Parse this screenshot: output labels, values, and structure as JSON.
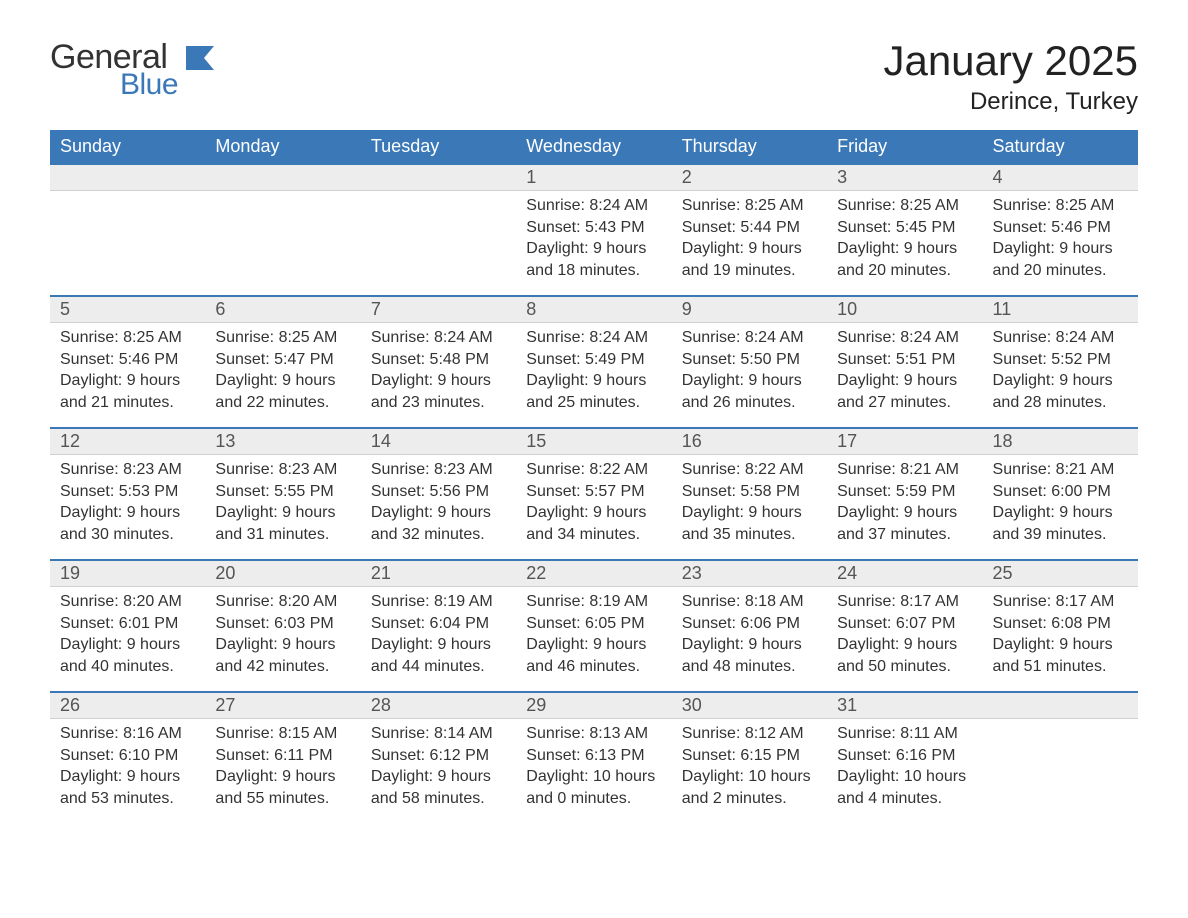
{
  "brand": {
    "word1": "General",
    "word2": "Blue",
    "flag_color": "#3a78b8",
    "word1_color": "#333333",
    "word2_color": "#3a78b8"
  },
  "header": {
    "month_title": "January 2025",
    "location": "Derince, Turkey"
  },
  "style": {
    "header_bg": "#3a78b8",
    "header_text": "#ffffff",
    "daynum_bg": "#ededed",
    "row_divider": "#3a78b8",
    "body_bg": "#ffffff",
    "text_color": "#333333",
    "title_fontsize_pt": 32,
    "location_fontsize_pt": 18,
    "dayhdr_fontsize_pt": 14,
    "cell_fontsize_pt": 12
  },
  "day_headers": [
    "Sunday",
    "Monday",
    "Tuesday",
    "Wednesday",
    "Thursday",
    "Friday",
    "Saturday"
  ],
  "weeks": [
    [
      null,
      null,
      null,
      {
        "n": "1",
        "sunrise": "Sunrise: 8:24 AM",
        "sunset": "Sunset: 5:43 PM",
        "d1": "Daylight: 9 hours",
        "d2": "and 18 minutes."
      },
      {
        "n": "2",
        "sunrise": "Sunrise: 8:25 AM",
        "sunset": "Sunset: 5:44 PM",
        "d1": "Daylight: 9 hours",
        "d2": "and 19 minutes."
      },
      {
        "n": "3",
        "sunrise": "Sunrise: 8:25 AM",
        "sunset": "Sunset: 5:45 PM",
        "d1": "Daylight: 9 hours",
        "d2": "and 20 minutes."
      },
      {
        "n": "4",
        "sunrise": "Sunrise: 8:25 AM",
        "sunset": "Sunset: 5:46 PM",
        "d1": "Daylight: 9 hours",
        "d2": "and 20 minutes."
      }
    ],
    [
      {
        "n": "5",
        "sunrise": "Sunrise: 8:25 AM",
        "sunset": "Sunset: 5:46 PM",
        "d1": "Daylight: 9 hours",
        "d2": "and 21 minutes."
      },
      {
        "n": "6",
        "sunrise": "Sunrise: 8:25 AM",
        "sunset": "Sunset: 5:47 PM",
        "d1": "Daylight: 9 hours",
        "d2": "and 22 minutes."
      },
      {
        "n": "7",
        "sunrise": "Sunrise: 8:24 AM",
        "sunset": "Sunset: 5:48 PM",
        "d1": "Daylight: 9 hours",
        "d2": "and 23 minutes."
      },
      {
        "n": "8",
        "sunrise": "Sunrise: 8:24 AM",
        "sunset": "Sunset: 5:49 PM",
        "d1": "Daylight: 9 hours",
        "d2": "and 25 minutes."
      },
      {
        "n": "9",
        "sunrise": "Sunrise: 8:24 AM",
        "sunset": "Sunset: 5:50 PM",
        "d1": "Daylight: 9 hours",
        "d2": "and 26 minutes."
      },
      {
        "n": "10",
        "sunrise": "Sunrise: 8:24 AM",
        "sunset": "Sunset: 5:51 PM",
        "d1": "Daylight: 9 hours",
        "d2": "and 27 minutes."
      },
      {
        "n": "11",
        "sunrise": "Sunrise: 8:24 AM",
        "sunset": "Sunset: 5:52 PM",
        "d1": "Daylight: 9 hours",
        "d2": "and 28 minutes."
      }
    ],
    [
      {
        "n": "12",
        "sunrise": "Sunrise: 8:23 AM",
        "sunset": "Sunset: 5:53 PM",
        "d1": "Daylight: 9 hours",
        "d2": "and 30 minutes."
      },
      {
        "n": "13",
        "sunrise": "Sunrise: 8:23 AM",
        "sunset": "Sunset: 5:55 PM",
        "d1": "Daylight: 9 hours",
        "d2": "and 31 minutes."
      },
      {
        "n": "14",
        "sunrise": "Sunrise: 8:23 AM",
        "sunset": "Sunset: 5:56 PM",
        "d1": "Daylight: 9 hours",
        "d2": "and 32 minutes."
      },
      {
        "n": "15",
        "sunrise": "Sunrise: 8:22 AM",
        "sunset": "Sunset: 5:57 PM",
        "d1": "Daylight: 9 hours",
        "d2": "and 34 minutes."
      },
      {
        "n": "16",
        "sunrise": "Sunrise: 8:22 AM",
        "sunset": "Sunset: 5:58 PM",
        "d1": "Daylight: 9 hours",
        "d2": "and 35 minutes."
      },
      {
        "n": "17",
        "sunrise": "Sunrise: 8:21 AM",
        "sunset": "Sunset: 5:59 PM",
        "d1": "Daylight: 9 hours",
        "d2": "and 37 minutes."
      },
      {
        "n": "18",
        "sunrise": "Sunrise: 8:21 AM",
        "sunset": "Sunset: 6:00 PM",
        "d1": "Daylight: 9 hours",
        "d2": "and 39 minutes."
      }
    ],
    [
      {
        "n": "19",
        "sunrise": "Sunrise: 8:20 AM",
        "sunset": "Sunset: 6:01 PM",
        "d1": "Daylight: 9 hours",
        "d2": "and 40 minutes."
      },
      {
        "n": "20",
        "sunrise": "Sunrise: 8:20 AM",
        "sunset": "Sunset: 6:03 PM",
        "d1": "Daylight: 9 hours",
        "d2": "and 42 minutes."
      },
      {
        "n": "21",
        "sunrise": "Sunrise: 8:19 AM",
        "sunset": "Sunset: 6:04 PM",
        "d1": "Daylight: 9 hours",
        "d2": "and 44 minutes."
      },
      {
        "n": "22",
        "sunrise": "Sunrise: 8:19 AM",
        "sunset": "Sunset: 6:05 PM",
        "d1": "Daylight: 9 hours",
        "d2": "and 46 minutes."
      },
      {
        "n": "23",
        "sunrise": "Sunrise: 8:18 AM",
        "sunset": "Sunset: 6:06 PM",
        "d1": "Daylight: 9 hours",
        "d2": "and 48 minutes."
      },
      {
        "n": "24",
        "sunrise": "Sunrise: 8:17 AM",
        "sunset": "Sunset: 6:07 PM",
        "d1": "Daylight: 9 hours",
        "d2": "and 50 minutes."
      },
      {
        "n": "25",
        "sunrise": "Sunrise: 8:17 AM",
        "sunset": "Sunset: 6:08 PM",
        "d1": "Daylight: 9 hours",
        "d2": "and 51 minutes."
      }
    ],
    [
      {
        "n": "26",
        "sunrise": "Sunrise: 8:16 AM",
        "sunset": "Sunset: 6:10 PM",
        "d1": "Daylight: 9 hours",
        "d2": "and 53 minutes."
      },
      {
        "n": "27",
        "sunrise": "Sunrise: 8:15 AM",
        "sunset": "Sunset: 6:11 PM",
        "d1": "Daylight: 9 hours",
        "d2": "and 55 minutes."
      },
      {
        "n": "28",
        "sunrise": "Sunrise: 8:14 AM",
        "sunset": "Sunset: 6:12 PM",
        "d1": "Daylight: 9 hours",
        "d2": "and 58 minutes."
      },
      {
        "n": "29",
        "sunrise": "Sunrise: 8:13 AM",
        "sunset": "Sunset: 6:13 PM",
        "d1": "Daylight: 10 hours",
        "d2": "and 0 minutes."
      },
      {
        "n": "30",
        "sunrise": "Sunrise: 8:12 AM",
        "sunset": "Sunset: 6:15 PM",
        "d1": "Daylight: 10 hours",
        "d2": "and 2 minutes."
      },
      {
        "n": "31",
        "sunrise": "Sunrise: 8:11 AM",
        "sunset": "Sunset: 6:16 PM",
        "d1": "Daylight: 10 hours",
        "d2": "and 4 minutes."
      },
      null
    ]
  ]
}
